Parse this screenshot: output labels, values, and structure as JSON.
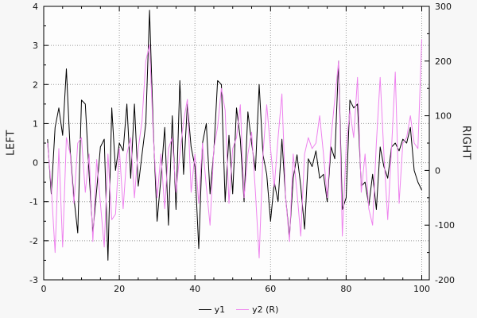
{
  "colors": {
    "background": "#f7f7f7",
    "plot_bg": "#fdfdfd",
    "grid": "#999999",
    "border": "#000000",
    "tick_text": "#111111"
  },
  "chart_data": {
    "type": "line",
    "title": "",
    "xlabel": "",
    "ylabel_left": "LEFT",
    "ylabel_right": "RIGHT",
    "xlim": [
      0,
      102
    ],
    "ylim_left": [
      -3,
      4
    ],
    "ylim_right": [
      -200,
      300
    ],
    "x_major_ticks": [
      0,
      20,
      40,
      60,
      80,
      100
    ],
    "x_minor_step": 5,
    "left_ticks": [
      -3,
      -2,
      -1,
      0,
      1,
      2,
      3,
      4
    ],
    "left_minor_step": 0.5,
    "right_ticks": [
      -200,
      -100,
      0,
      100,
      200,
      300
    ],
    "right_minor_step": 50,
    "grid": true,
    "legend_position": "bottom-center",
    "x": [
      1,
      2,
      3,
      4,
      5,
      6,
      7,
      8,
      9,
      10,
      11,
      12,
      13,
      14,
      15,
      16,
      17,
      18,
      19,
      20,
      21,
      22,
      23,
      24,
      25,
      26,
      27,
      28,
      29,
      30,
      31,
      32,
      33,
      34,
      35,
      36,
      37,
      38,
      39,
      40,
      41,
      42,
      43,
      44,
      45,
      46,
      47,
      48,
      49,
      50,
      51,
      52,
      53,
      54,
      55,
      56,
      57,
      58,
      59,
      60,
      61,
      62,
      63,
      64,
      65,
      66,
      67,
      68,
      69,
      70,
      71,
      72,
      73,
      74,
      75,
      76,
      77,
      78,
      79,
      80,
      81,
      82,
      83,
      84,
      85,
      86,
      87,
      88,
      89,
      90,
      91,
      92,
      93,
      94,
      95,
      96,
      97,
      98,
      99,
      100
    ],
    "series": [
      {
        "name": "y1",
        "axis": "left",
        "color": "#000000",
        "values": [
          0.6,
          -0.8,
          0.9,
          1.4,
          0.7,
          2.4,
          0.3,
          -0.9,
          -1.8,
          1.6,
          1.5,
          -0.3,
          -1.8,
          -0.7,
          0.4,
          0.6,
          -2.5,
          1.4,
          -0.2,
          0.5,
          0.3,
          1.5,
          -0.4,
          1.5,
          -0.6,
          0.2,
          1.0,
          3.9,
          0.8,
          -1.5,
          -0.4,
          0.9,
          -1.6,
          1.2,
          -1.2,
          2.1,
          -0.3,
          1.5,
          0.4,
          -0.1,
          -2.2,
          0.5,
          1.0,
          -0.8,
          0.3,
          2.1,
          2.0,
          -1.0,
          0.7,
          -0.8,
          1.4,
          0.6,
          -1.0,
          1.3,
          0.5,
          -0.2,
          2.0,
          0.2,
          -0.3,
          -1.5,
          -0.5,
          -1.0,
          0.6,
          -0.9,
          -1.9,
          -0.4,
          0.2,
          -0.6,
          -1.7,
          0.1,
          -0.1,
          0.3,
          -0.4,
          -0.3,
          -1.0,
          0.4,
          0.1,
          2.6,
          -1.2,
          -0.9,
          1.6,
          1.4,
          1.5,
          -0.6,
          -0.5,
          -1.1,
          -0.3,
          -1.2,
          0.4,
          -0.1,
          -0.4,
          0.4,
          0.5,
          0.3,
          0.6,
          0.5,
          0.9,
          -0.2,
          -0.5,
          -0.7
        ]
      },
      {
        "name": "y2 (R)",
        "axis": "right",
        "color": "#ee82ee",
        "values": [
          50,
          -30,
          -150,
          40,
          -140,
          60,
          30,
          -60,
          50,
          60,
          -40,
          30,
          -130,
          20,
          -60,
          -140,
          30,
          -90,
          -80,
          40,
          -70,
          30,
          60,
          -50,
          40,
          90,
          200,
          230,
          60,
          -50,
          30,
          -70,
          40,
          60,
          -40,
          30,
          90,
          130,
          -40,
          30,
          -60,
          50,
          -30,
          -100,
          40,
          80,
          150,
          110,
          -60,
          40,
          60,
          120,
          -50,
          30,
          70,
          -40,
          -160,
          30,
          120,
          40,
          -30,
          60,
          140,
          -50,
          -130,
          30,
          -40,
          -120,
          30,
          60,
          40,
          50,
          100,
          30,
          -50,
          60,
          130,
          200,
          -120,
          40,
          110,
          60,
          170,
          -40,
          30,
          -70,
          -100,
          50,
          170,
          30,
          -90,
          40,
          180,
          -60,
          50,
          60,
          100,
          50,
          40,
          240
        ]
      }
    ]
  },
  "legend": {
    "y1_label": "y1",
    "y2_label": "y2 (R)"
  }
}
